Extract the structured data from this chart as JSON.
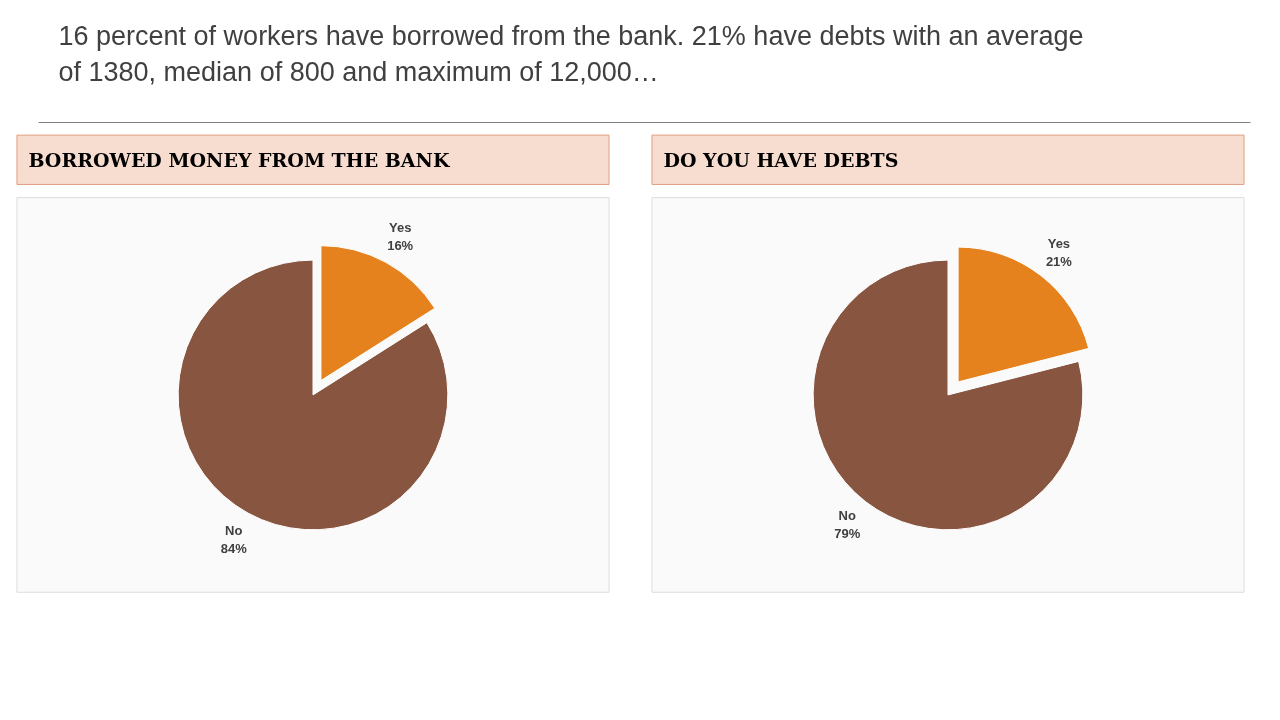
{
  "chart_data": [
    {
      "type": "pie",
      "title": "BORROWED MONEY FROM THE BANK",
      "categories": [
        "Yes",
        "No"
      ],
      "values": [
        16,
        84
      ],
      "colors": [
        "#e6821e",
        "#875540"
      ],
      "value_labels": [
        "16%",
        "84%"
      ],
      "legend": false,
      "annotations": [
        "16 percent of workers have borrowed from the bank.  21% have debts with an average of 1380, median of 800 and maximum of 12,000…"
      ]
    },
    {
      "type": "pie",
      "title": "DO YOU HAVE DEBTS",
      "categories": [
        "Yes",
        "No"
      ],
      "values": [
        21,
        79
      ],
      "colors": [
        "#e6821e",
        "#875540"
      ],
      "value_labels": [
        "21%",
        "79%"
      ],
      "legend": false
    }
  ]
}
